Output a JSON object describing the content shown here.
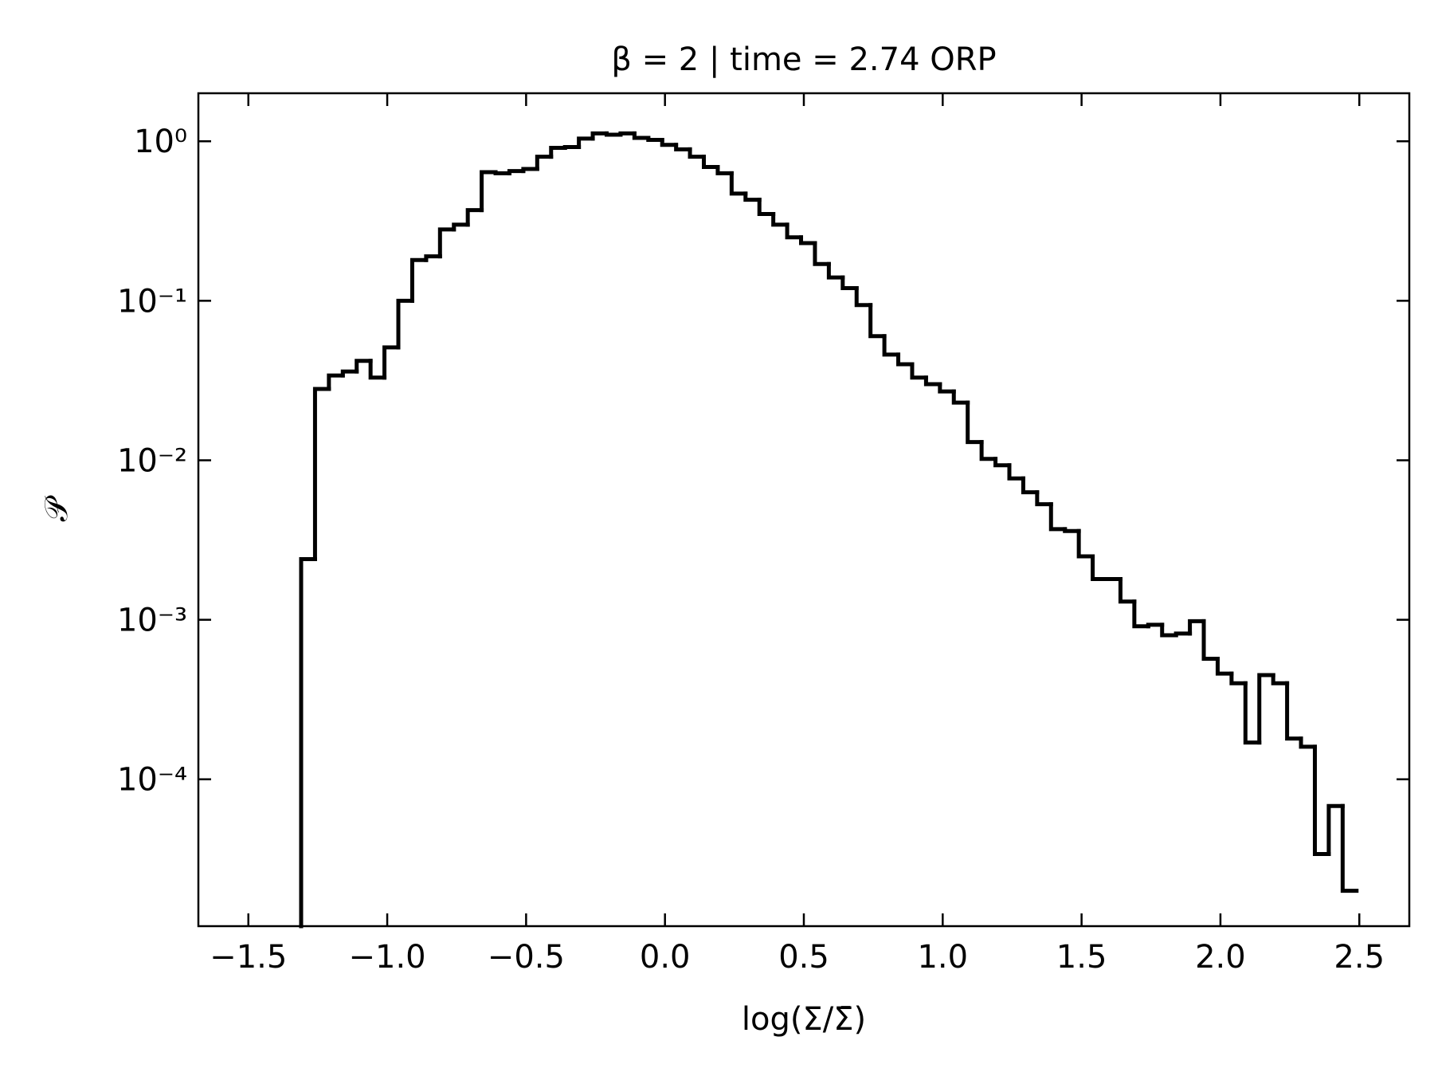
{
  "chart_data": {
    "type": "histogram",
    "title": "β = 2 | time = 2.74 ORP",
    "x_label": "log(Σ/Σ̄)",
    "y_label": "𝒫",
    "color": "#000000",
    "log_y": true,
    "bins": [
      -1.31,
      -1.26,
      -1.21,
      -1.16,
      -1.11,
      -1.06,
      -1.01,
      -0.96,
      -0.91,
      -0.86,
      -0.81,
      -0.76,
      -0.71,
      -0.66,
      -0.61,
      -0.56,
      -0.51,
      -0.46,
      -0.41,
      -0.36,
      -0.31,
      -0.26,
      -0.21,
      -0.16,
      -0.11,
      -0.06,
      -0.01,
      0.04,
      0.09,
      0.14,
      0.19,
      0.24,
      0.29,
      0.34,
      0.39,
      0.44,
      0.49,
      0.54,
      0.59,
      0.64,
      0.69,
      0.74,
      0.79,
      0.84,
      0.89,
      0.94,
      0.99,
      1.04,
      1.09,
      1.14,
      1.19,
      1.24,
      1.29,
      1.34,
      1.39,
      1.44,
      1.49,
      1.54,
      1.59,
      1.64,
      1.69,
      1.74,
      1.79,
      1.84,
      1.89,
      1.94,
      1.99,
      2.04,
      2.09,
      2.14,
      2.19,
      2.24,
      2.29,
      2.34,
      2.39,
      2.44,
      2.49
    ],
    "counts": [
      0.0024,
      0.028,
      0.034,
      0.036,
      0.042,
      0.033,
      0.051,
      0.1,
      0.18,
      0.19,
      0.28,
      0.3,
      0.37,
      0.64,
      0.63,
      0.65,
      0.67,
      0.8,
      0.91,
      0.92,
      1.04,
      1.12,
      1.1,
      1.12,
      1.05,
      1.02,
      0.95,
      0.89,
      0.8,
      0.69,
      0.63,
      0.47,
      0.43,
      0.35,
      0.3,
      0.25,
      0.23,
      0.17,
      0.14,
      0.12,
      0.094,
      0.06,
      0.046,
      0.04,
      0.033,
      0.03,
      0.027,
      0.023,
      0.013,
      0.0102,
      0.0093,
      0.0077,
      0.0063,
      0.0053,
      0.0037,
      0.0036,
      0.0025,
      0.0018,
      0.0018,
      0.0013,
      0.00091,
      0.00093,
      0.0008,
      0.00082,
      0.00098,
      0.00057,
      0.00046,
      0.0004,
      0.00017,
      0.00045,
      0.0004,
      0.00018,
      0.00016,
      3.4e-05,
      6.8e-05,
      2e-05
    ],
    "xlim": [
      -1.68,
      2.68
    ],
    "ylim": [
      1.2e-05,
      2.0
    ],
    "xticks": [
      {
        "value": -1.5,
        "label": "−1.5"
      },
      {
        "value": -1,
        "label": "−1.0"
      },
      {
        "value": -0.5,
        "label": "−0.5"
      },
      {
        "value": 0,
        "label": "0.0"
      },
      0.5,
      {
        "value": 1,
        "label": "1.0"
      },
      1.5,
      {
        "value": 2,
        "label": "2.0"
      },
      2.5
    ],
    "yticks": [
      {
        "value": 1,
        "label": "10⁰"
      },
      {
        "value": 0.1,
        "label": "10⁻¹"
      },
      {
        "value": 0.01,
        "label": "10⁻²"
      },
      {
        "value": 0.001,
        "label": "10⁻³"
      },
      {
        "value": 0.0001,
        "label": "10⁻⁴"
      }
    ]
  }
}
